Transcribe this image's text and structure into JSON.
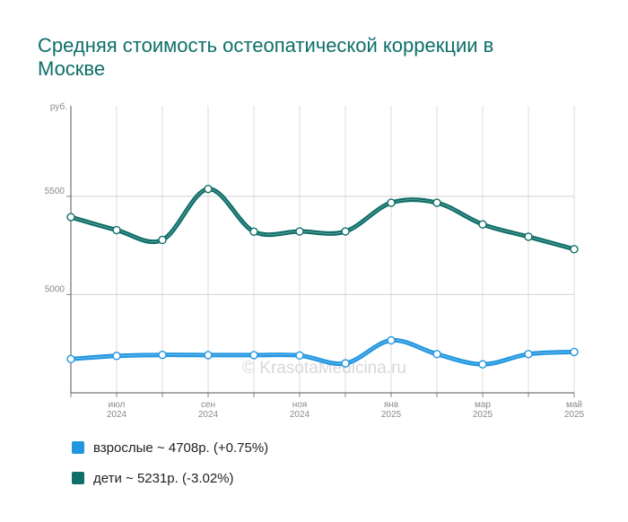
{
  "title": "Средняя стоимость остеопатической коррекции в Москве",
  "watermark": "© KrasotaMedicina.ru",
  "colors": {
    "title": "#0d6f68",
    "adults": "#2196e0",
    "kids": "#0e6e68",
    "grid": "#d9d9d9"
  },
  "legend": [
    {
      "label": "взрослые ~ 4708р. (+0.75%)",
      "color": "#2196e0"
    },
    {
      "label": "дети ~ 5231р. (-3.02%)",
      "color": "#0e6e68"
    }
  ],
  "chart_data": {
    "type": "line",
    "title": "Средняя стоимость остеопатической коррекции в Москве",
    "ylabel": "руб.",
    "xlabel": "",
    "ylim": [
      4500,
      5960
    ],
    "yticks": [
      5000,
      5500
    ],
    "grid": true,
    "legend_position": "bottom",
    "x": [
      "2024-06",
      "2024-07",
      "2024-08",
      "2024-09",
      "2024-10",
      "2024-11",
      "2024-12",
      "2025-01",
      "2025-02",
      "2025-03",
      "2025-04",
      "2025-05"
    ],
    "xtick_labels": [
      {
        "index": 1,
        "month": "июл",
        "year": "2024"
      },
      {
        "index": 3,
        "month": "сен",
        "year": "2024"
      },
      {
        "index": 5,
        "month": "ноя",
        "year": "2024"
      },
      {
        "index": 7,
        "month": "янв",
        "year": "2025"
      },
      {
        "index": 9,
        "month": "мар",
        "year": "2025"
      },
      {
        "index": 11,
        "month": "май",
        "year": "2025"
      }
    ],
    "series": [
      {
        "name": "взрослые",
        "color": "#2196e0",
        "values": [
          4672,
          4688,
          4693,
          4692,
          4692,
          4690,
          4650,
          4767,
          4697,
          4645,
          4697,
          4708
        ]
      },
      {
        "name": "дети",
        "color": "#0e6e68",
        "values": [
          5394,
          5328,
          5278,
          5537,
          5320,
          5321,
          5321,
          5467,
          5467,
          5357,
          5294,
          5231
        ]
      }
    ]
  }
}
